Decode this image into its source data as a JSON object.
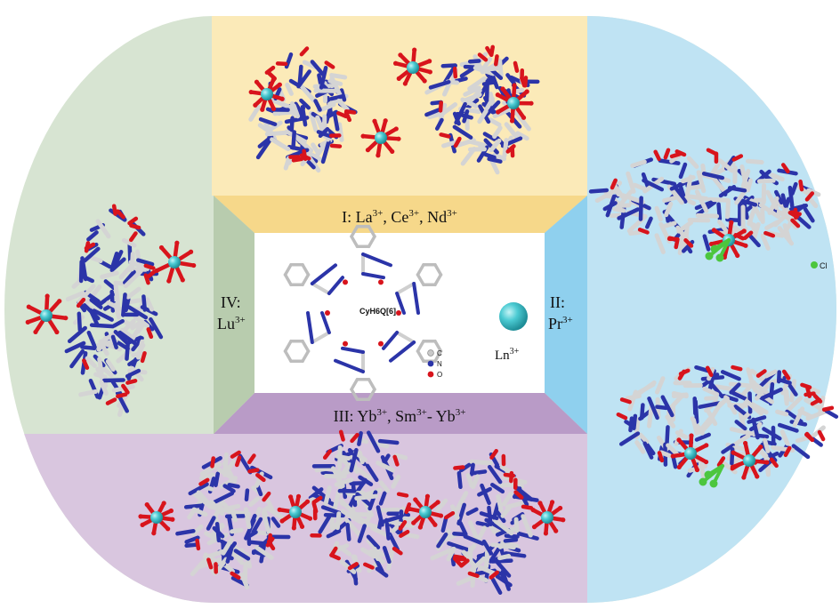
{
  "center_molecule_label": "CyH6Q[6]",
  "legend": {
    "carbon": "C",
    "nitrogen": "N",
    "oxygen": "O",
    "chloride": "Cl",
    "lanthanide": "Ln"
  },
  "charge": "3+",
  "regions": {
    "I": {
      "numeral": "I:",
      "ions": [
        "La",
        "Ce",
        "Nd"
      ]
    },
    "II": {
      "numeral": "II:",
      "ions": [
        "Pr"
      ]
    },
    "III": {
      "numeral": "III:",
      "ions": [
        "Yb",
        "Sm",
        "Yb"
      ]
    },
    "IV": {
      "numeral": "IV:",
      "ions": [
        "Lu"
      ]
    }
  },
  "colors": {
    "region_I": "#fbeab8",
    "region_II": "#bfe3f3",
    "region_III": "#d9c6df",
    "region_IV": "#d7e4d2",
    "trap_I": "#f6d88a",
    "trap_II": "#8fd0ee",
    "trap_III": "#b99bc7",
    "trap_IV": "#b8ccae",
    "carbon": "#c8c8c8",
    "nitrogen": "#2b34a8",
    "oxygen": "#d8141c",
    "lanthanide": "#3fc3cc",
    "chloride": "#4cc63e"
  }
}
